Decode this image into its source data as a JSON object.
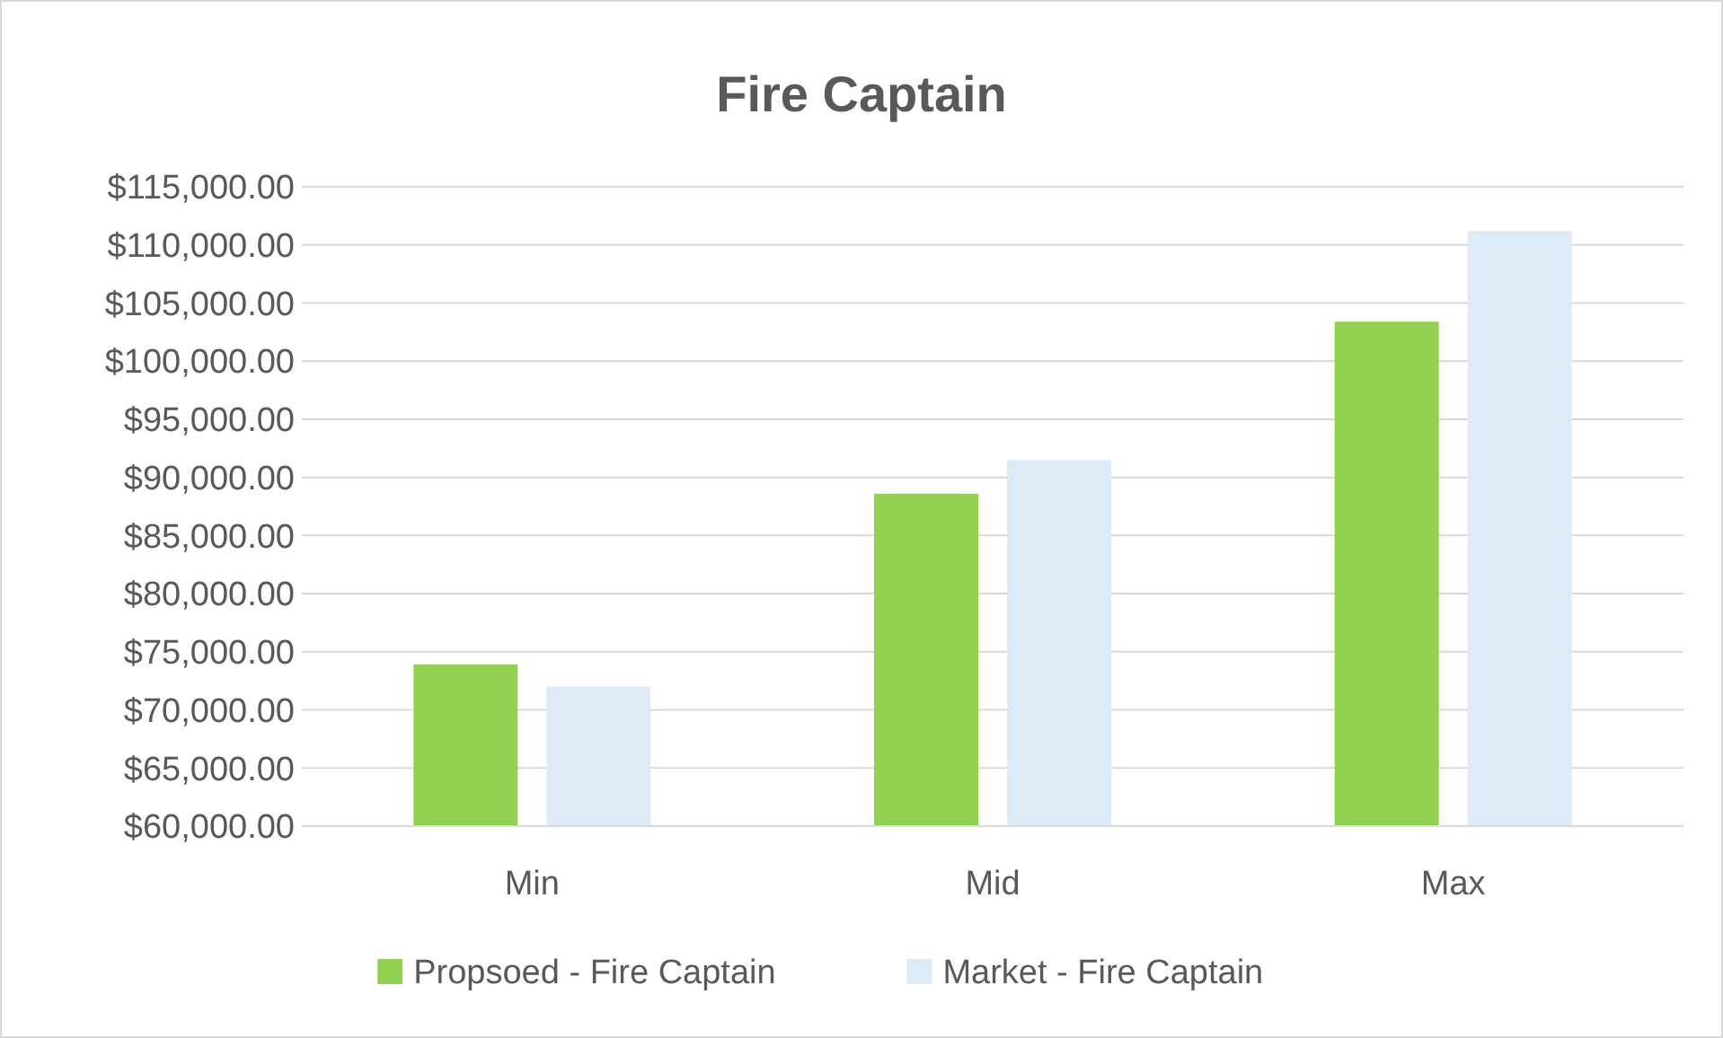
{
  "chart_data": {
    "type": "bar",
    "title": "Fire Captain",
    "categories": [
      "Min",
      "Mid",
      "Max"
    ],
    "series": [
      {
        "name": "Propsoed - Fire Captain",
        "color": "#92d050",
        "values": [
          73900,
          88600,
          103400
        ]
      },
      {
        "name": "Market - Fire Captain",
        "color": "#ddebf7",
        "values": [
          72000,
          91500,
          111200
        ]
      }
    ],
    "ylim": [
      60000,
      115000
    ],
    "yticks": [
      {
        "value": 60000,
        "label": "$60,000.00"
      },
      {
        "value": 65000,
        "label": "$65,000.00"
      },
      {
        "value": 70000,
        "label": "$70,000.00"
      },
      {
        "value": 75000,
        "label": "$75,000.00"
      },
      {
        "value": 80000,
        "label": "$80,000.00"
      },
      {
        "value": 85000,
        "label": "$85,000.00"
      },
      {
        "value": 90000,
        "label": "$90,000.00"
      },
      {
        "value": 95000,
        "label": "$95,000.00"
      },
      {
        "value": 100000,
        "label": "$100,000.00"
      },
      {
        "value": 105000,
        "label": "$105,000.00"
      },
      {
        "value": 110000,
        "label": "$110,000.00"
      },
      {
        "value": 115000,
        "label": "$115,000.00"
      }
    ],
    "grid": "y",
    "legend": "bottom"
  }
}
